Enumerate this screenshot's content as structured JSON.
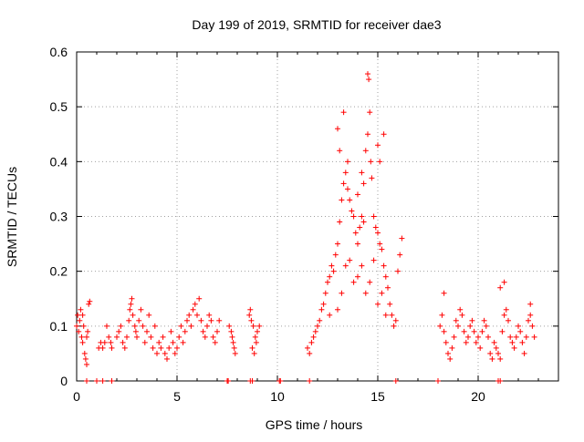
{
  "chart_data": {
    "type": "scatter",
    "title": "Day 199 of 2019, SRMTID for receiver dae3",
    "xlabel": "GPS time / hours",
    "ylabel": "SRMTID / TECUs",
    "xlim": [
      0,
      24
    ],
    "ylim": [
      0,
      0.6
    ],
    "x_ticks": [
      0,
      5,
      10,
      15,
      20
    ],
    "x_tick_labels": [
      "0",
      "5",
      "10",
      "15",
      "20"
    ],
    "y_ticks": [
      0,
      0.1,
      0.2,
      0.3,
      0.4,
      0.5,
      0.6
    ],
    "y_tick_labels": [
      "0",
      "0.1",
      "0.2",
      "0.3",
      "0.4",
      "0.5",
      "0.6"
    ],
    "grid": true,
    "marker": "plus",
    "color": "#ff0000",
    "series": [
      {
        "name": "SRMTID",
        "points": [
          [
            0.0,
            0.1
          ],
          [
            0.05,
            0.12
          ],
          [
            0.1,
            0.09
          ],
          [
            0.15,
            0.11
          ],
          [
            0.2,
            0.13
          ],
          [
            0.25,
            0.08
          ],
          [
            0.3,
            0.07
          ],
          [
            0.35,
            0.1
          ],
          [
            0.4,
            0.05
          ],
          [
            0.45,
            0.04
          ],
          [
            0.5,
            0.03
          ],
          [
            0.55,
            0.09
          ],
          [
            0.6,
            0.14
          ],
          [
            0.65,
            0.145
          ],
          [
            0.5,
            0.08
          ],
          [
            0.3,
            0.12
          ],
          [
            1.1,
            0.06
          ],
          [
            1.2,
            0.07
          ],
          [
            1.3,
            0.06
          ],
          [
            1.4,
            0.07
          ],
          [
            1.5,
            0.1
          ],
          [
            1.6,
            0.08
          ],
          [
            1.7,
            0.07
          ],
          [
            1.75,
            0.06
          ],
          [
            2.0,
            0.08
          ],
          [
            2.1,
            0.09
          ],
          [
            2.2,
            0.1
          ],
          [
            2.3,
            0.07
          ],
          [
            2.4,
            0.06
          ],
          [
            2.5,
            0.08
          ],
          [
            2.6,
            0.11
          ],
          [
            2.65,
            0.13
          ],
          [
            2.7,
            0.14
          ],
          [
            2.75,
            0.15
          ],
          [
            2.8,
            0.12
          ],
          [
            2.9,
            0.1
          ],
          [
            2.95,
            0.09
          ],
          [
            3.0,
            0.08
          ],
          [
            3.1,
            0.11
          ],
          [
            3.2,
            0.13
          ],
          [
            3.3,
            0.1
          ],
          [
            3.4,
            0.07
          ],
          [
            3.5,
            0.09
          ],
          [
            3.6,
            0.12
          ],
          [
            3.7,
            0.08
          ],
          [
            3.8,
            0.06
          ],
          [
            3.9,
            0.1
          ],
          [
            4.0,
            0.05
          ],
          [
            4.1,
            0.07
          ],
          [
            4.2,
            0.06
          ],
          [
            4.3,
            0.08
          ],
          [
            4.4,
            0.05
          ],
          [
            4.5,
            0.04
          ],
          [
            4.6,
            0.06
          ],
          [
            4.7,
            0.09
          ],
          [
            4.8,
            0.07
          ],
          [
            4.9,
            0.05
          ],
          [
            5.0,
            0.06
          ],
          [
            5.1,
            0.08
          ],
          [
            5.2,
            0.1
          ],
          [
            5.3,
            0.07
          ],
          [
            5.4,
            0.09
          ],
          [
            5.5,
            0.11
          ],
          [
            5.6,
            0.12
          ],
          [
            5.7,
            0.1
          ],
          [
            5.8,
            0.13
          ],
          [
            5.9,
            0.14
          ],
          [
            6.0,
            0.12
          ],
          [
            6.1,
            0.15
          ],
          [
            6.2,
            0.11
          ],
          [
            6.3,
            0.09
          ],
          [
            6.4,
            0.08
          ],
          [
            6.5,
            0.1
          ],
          [
            6.6,
            0.12
          ],
          [
            6.7,
            0.11
          ],
          [
            6.8,
            0.08
          ],
          [
            6.9,
            0.07
          ],
          [
            7.0,
            0.09
          ],
          [
            7.1,
            0.11
          ],
          [
            7.7,
            0.09
          ],
          [
            7.75,
            0.08
          ],
          [
            7.8,
            0.07
          ],
          [
            7.85,
            0.06
          ],
          [
            7.9,
            0.05
          ],
          [
            7.6,
            0.1
          ],
          [
            8.6,
            0.12
          ],
          [
            8.7,
            0.11
          ],
          [
            8.8,
            0.1
          ],
          [
            8.9,
            0.08
          ],
          [
            8.75,
            0.06
          ],
          [
            8.85,
            0.05
          ],
          [
            8.95,
            0.07
          ],
          [
            9.0,
            0.09
          ],
          [
            9.1,
            0.1
          ],
          [
            8.65,
            0.13
          ],
          [
            11.5,
            0.06
          ],
          [
            11.6,
            0.05
          ],
          [
            11.7,
            0.07
          ],
          [
            11.8,
            0.08
          ],
          [
            11.9,
            0.09
          ],
          [
            12.0,
            0.1
          ],
          [
            12.1,
            0.11
          ],
          [
            12.2,
            0.13
          ],
          [
            12.3,
            0.14
          ],
          [
            12.4,
            0.16
          ],
          [
            12.5,
            0.18
          ],
          [
            12.6,
            0.19
          ],
          [
            12.7,
            0.21
          ],
          [
            12.8,
            0.2
          ],
          [
            12.9,
            0.23
          ],
          [
            13.0,
            0.25
          ],
          [
            13.1,
            0.29
          ],
          [
            13.2,
            0.33
          ],
          [
            13.3,
            0.36
          ],
          [
            13.4,
            0.38
          ],
          [
            13.5,
            0.35
          ],
          [
            13.6,
            0.33
          ],
          [
            13.7,
            0.31
          ],
          [
            13.8,
            0.3
          ],
          [
            13.9,
            0.27
          ],
          [
            14.0,
            0.25
          ],
          [
            14.1,
            0.28
          ],
          [
            14.2,
            0.3
          ],
          [
            14.3,
            0.36
          ],
          [
            14.4,
            0.42
          ],
          [
            14.5,
            0.45
          ],
          [
            14.6,
            0.49
          ],
          [
            14.55,
            0.55
          ],
          [
            14.5,
            0.56
          ],
          [
            14.65,
            0.4
          ],
          [
            14.7,
            0.37
          ],
          [
            14.8,
            0.3
          ],
          [
            14.9,
            0.28
          ],
          [
            15.0,
            0.27
          ],
          [
            15.1,
            0.25
          ],
          [
            15.2,
            0.24
          ],
          [
            15.3,
            0.21
          ],
          [
            15.4,
            0.19
          ],
          [
            15.5,
            0.17
          ],
          [
            15.6,
            0.14
          ],
          [
            15.7,
            0.12
          ],
          [
            15.8,
            0.1
          ],
          [
            15.9,
            0.11
          ],
          [
            16.0,
            0.2
          ],
          [
            16.1,
            0.23
          ],
          [
            16.2,
            0.26
          ],
          [
            12.6,
            0.12
          ],
          [
            13.0,
            0.13
          ],
          [
            13.2,
            0.16
          ],
          [
            13.4,
            0.21
          ],
          [
            13.6,
            0.22
          ],
          [
            13.8,
            0.18
          ],
          [
            14.0,
            0.19
          ],
          [
            14.2,
            0.21
          ],
          [
            14.4,
            0.16
          ],
          [
            14.6,
            0.18
          ],
          [
            14.8,
            0.22
          ],
          [
            15.0,
            0.14
          ],
          [
            15.2,
            0.16
          ],
          [
            15.4,
            0.12
          ],
          [
            13.0,
            0.46
          ],
          [
            13.3,
            0.49
          ],
          [
            13.1,
            0.42
          ],
          [
            13.5,
            0.4
          ],
          [
            14.0,
            0.34
          ],
          [
            14.2,
            0.38
          ],
          [
            15.1,
            0.4
          ],
          [
            15.3,
            0.45
          ],
          [
            15.0,
            0.43
          ],
          [
            14.3,
            0.29
          ],
          [
            18.1,
            0.1
          ],
          [
            18.2,
            0.12
          ],
          [
            18.3,
            0.09
          ],
          [
            18.4,
            0.07
          ],
          [
            18.5,
            0.05
          ],
          [
            18.6,
            0.04
          ],
          [
            18.7,
            0.06
          ],
          [
            18.8,
            0.08
          ],
          [
            18.9,
            0.11
          ],
          [
            19.0,
            0.1
          ],
          [
            19.1,
            0.13
          ],
          [
            19.2,
            0.12
          ],
          [
            19.3,
            0.09
          ],
          [
            19.4,
            0.07
          ],
          [
            19.5,
            0.08
          ],
          [
            19.6,
            0.1
          ],
          [
            19.7,
            0.11
          ],
          [
            19.8,
            0.09
          ],
          [
            19.9,
            0.07
          ],
          [
            20.0,
            0.08
          ],
          [
            20.1,
            0.06
          ],
          [
            20.2,
            0.09
          ],
          [
            20.3,
            0.11
          ],
          [
            20.4,
            0.1
          ],
          [
            20.5,
            0.08
          ],
          [
            20.6,
            0.05
          ],
          [
            20.7,
            0.04
          ],
          [
            20.8,
            0.07
          ],
          [
            20.9,
            0.06
          ],
          [
            21.0,
            0.05
          ],
          [
            21.1,
            0.04
          ],
          [
            21.2,
            0.09
          ],
          [
            21.3,
            0.12
          ],
          [
            21.4,
            0.13
          ],
          [
            21.5,
            0.11
          ],
          [
            21.6,
            0.08
          ],
          [
            21.7,
            0.07
          ],
          [
            21.8,
            0.06
          ],
          [
            21.9,
            0.08
          ],
          [
            22.0,
            0.1
          ],
          [
            22.1,
            0.09
          ],
          [
            22.2,
            0.07
          ],
          [
            22.3,
            0.05
          ],
          [
            22.4,
            0.08
          ],
          [
            22.5,
            0.11
          ],
          [
            22.6,
            0.12
          ],
          [
            22.7,
            0.1
          ],
          [
            22.8,
            0.08
          ],
          [
            18.3,
            0.16
          ],
          [
            21.1,
            0.17
          ],
          [
            21.3,
            0.18
          ],
          [
            22.6,
            0.14
          ]
        ]
      }
    ],
    "zero_markers_x": [
      0.5,
      1.0,
      1.3,
      1.75,
      7.5,
      7.55,
      8.65,
      8.75,
      10.1,
      10.15,
      11.6,
      15.9,
      18.0,
      21.0,
      21.1
    ]
  }
}
